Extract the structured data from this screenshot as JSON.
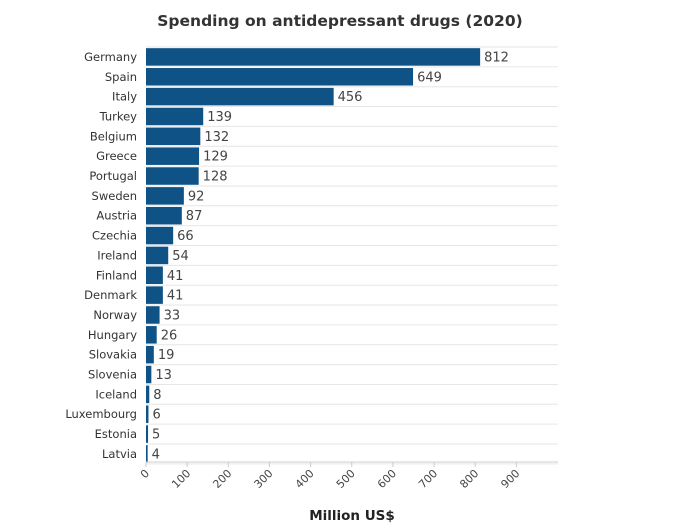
{
  "chart_data": {
    "type": "bar",
    "orientation": "horizontal",
    "title": "Spending on antidepressant drugs (2020)",
    "xlabel": "Million US$",
    "ylabel": "",
    "categories": [
      "Germany",
      "Spain",
      "Italy",
      "Turkey",
      "Belgium",
      "Greece",
      "Portugal",
      "Sweden",
      "Austria",
      "Czechia",
      "Ireland",
      "Finland",
      "Denmark",
      "Norway",
      "Hungary",
      "Slovakia",
      "Slovenia",
      "Iceland",
      "Luxembourg",
      "Estonia",
      "Latvia"
    ],
    "values": [
      812,
      649,
      456,
      139,
      132,
      129,
      128,
      92,
      87,
      66,
      54,
      41,
      41,
      33,
      26,
      19,
      13,
      8,
      6,
      5,
      4
    ],
    "xlim": [
      0,
      1000
    ],
    "xticks": [
      0,
      100,
      200,
      300,
      400,
      500,
      600,
      700,
      800,
      900
    ],
    "grid": true,
    "data_labels": true,
    "bar_color": "#0f5286",
    "grid_color": "#e6e6e6"
  }
}
